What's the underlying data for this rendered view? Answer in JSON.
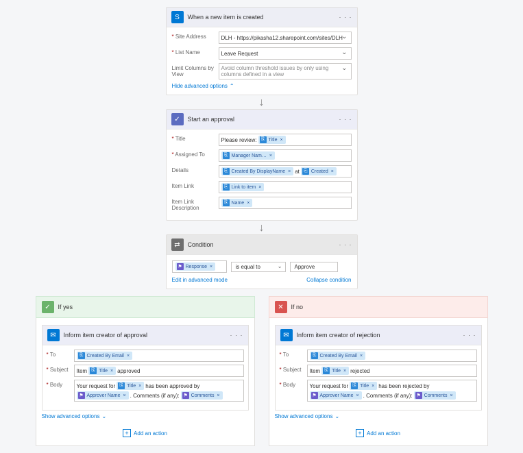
{
  "trigger": {
    "title": "When a new item is created",
    "fields": {
      "siteAddressLabel": "Site Address",
      "siteAddressValue": "DLH - https://pikasha12.sharepoint.com/sites/DLH",
      "listNameLabel": "List Name",
      "listNameValue": "Leave Request",
      "limitColsLabel": "Limit Columns by View",
      "limitColsValue": "Avoid column threshold issues by only using columns defined in a view"
    },
    "hideAdvanced": "Hide advanced options"
  },
  "approval": {
    "title": "Start an approval",
    "rows": {
      "titleLabel": "Title",
      "titleText": "Please review:",
      "titleToken": "Title",
      "assignedLabel": "Assigned To",
      "assignedToken": "Manager Nam…",
      "detailsLabel": "Details",
      "detailsToken1": "Created By DisplayName",
      "detailsMid": "at",
      "detailsToken2": "Created",
      "itemLinkLabel": "Item Link",
      "itemLinkToken": "Link to item",
      "itemLinkDescLabel": "Item Link Description",
      "itemLinkDescToken": "Name"
    }
  },
  "condition": {
    "title": "Condition",
    "leftToken": "Response",
    "operator": "is equal to",
    "right": "Approve",
    "editAdvanced": "Edit in advanced mode",
    "collapse": "Collapse condition"
  },
  "branches": {
    "yesLabel": "If yes",
    "noLabel": "If no",
    "addAction": "Add an action",
    "showAdvanced": "Show advanced options"
  },
  "mailYes": {
    "title": "Inform item creator of approval",
    "toLabel": "To",
    "toToken": "Created By Email",
    "subjectLabel": "Subject",
    "subjectText1": "Item",
    "subjectToken": "Title",
    "subjectText2": "approved",
    "bodyLabel": "Body",
    "bodyText1": "Your request for",
    "bodyToken1": "Title",
    "bodyText2": "has been approved by",
    "bodyToken2": "Approver Name",
    "bodyText3": ". Comments (if any):",
    "bodyToken3": "Comments"
  },
  "mailNo": {
    "title": "Inform item creator of rejection",
    "toLabel": "To",
    "toToken": "Created By Email",
    "subjectLabel": "Subject",
    "subjectText1": "Item",
    "subjectToken": "Title",
    "subjectText2": "rejected",
    "bodyLabel": "Body",
    "bodyText1": "Your request for",
    "bodyToken1": "Title",
    "bodyText2": "has been rejected by",
    "bodyToken2": "Approver Name",
    "bodyText3": ". Comments (if any):",
    "bodyToken3": "Comments"
  },
  "colors": {
    "sharepoint": "#0078d4",
    "approval": "#5b6bc0",
    "condition": "#6e6e6e",
    "outlook": "#0078d4",
    "tokenBg": "#d0e7f8",
    "tokenPurple": "#6b5bcb"
  }
}
